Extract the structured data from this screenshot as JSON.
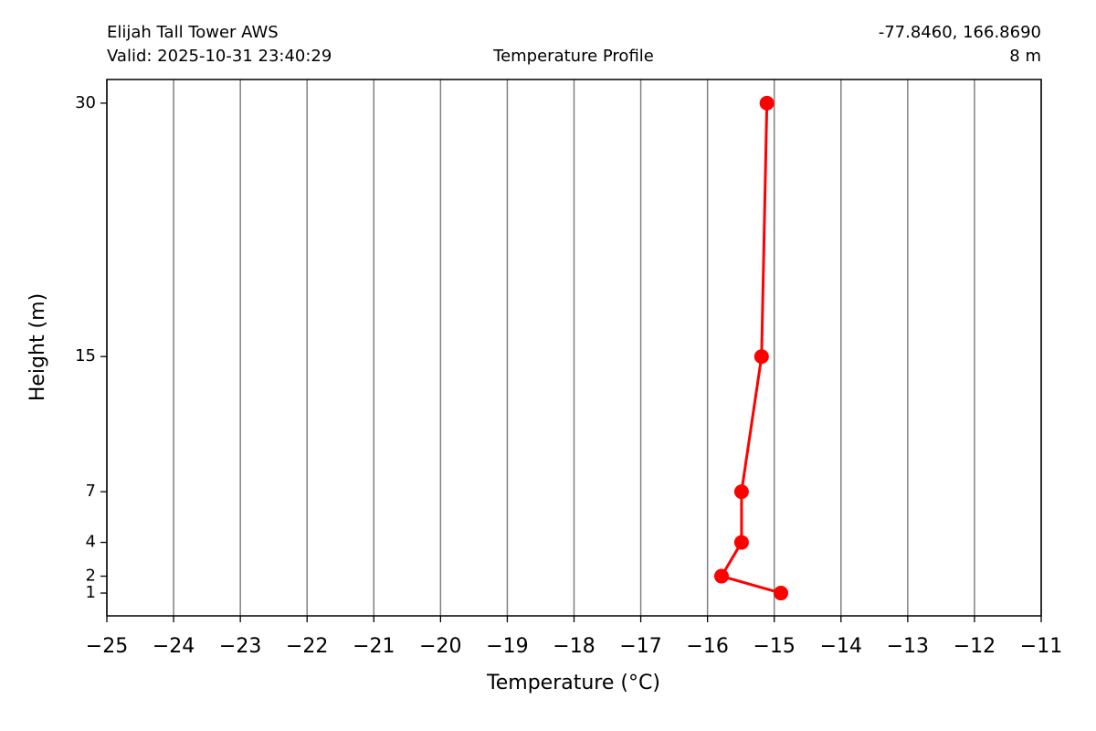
{
  "chart_data": {
    "type": "line",
    "station": "Elijah Tall Tower AWS",
    "valid": "Valid: 2025-10-31 23:40:29",
    "title": "Temperature Profile",
    "coordinates": "-77.8460, 166.8690",
    "elevation": "8 m",
    "x_label": "Temperature (°C)",
    "y_label": "Height (m)",
    "x": [
      -14.9,
      -15.79,
      -15.49,
      -15.49,
      -15.19,
      -15.11
    ],
    "series": [
      {
        "color": "#ff0000",
        "values": [
          1,
          2,
          4,
          7,
          15,
          30
        ]
      }
    ],
    "xlim": [
      -25,
      -11
    ],
    "xticks": [
      {
        "value": -25,
        "label": "−25"
      },
      {
        "value": -24,
        "label": "−24"
      },
      {
        "value": -23,
        "label": "−23"
      },
      {
        "value": -22,
        "label": "−22"
      },
      {
        "value": -21,
        "label": "−21"
      },
      {
        "value": -20,
        "label": "−20"
      },
      {
        "value": -19,
        "label": "−19"
      },
      {
        "value": -18,
        "label": "−18"
      },
      {
        "value": -17,
        "label": "−17"
      },
      {
        "value": -16,
        "label": "−16"
      },
      {
        "value": -15,
        "label": "−15"
      },
      {
        "value": -14,
        "label": "−14"
      },
      {
        "value": -13,
        "label": "−13"
      },
      {
        "value": -12,
        "label": "−12"
      },
      {
        "value": -11,
        "label": "−11"
      }
    ],
    "ylim": [
      -0.35,
      31.4
    ],
    "yticks": [
      1,
      2,
      4,
      7,
      15,
      30
    ],
    "grid": "x"
  }
}
